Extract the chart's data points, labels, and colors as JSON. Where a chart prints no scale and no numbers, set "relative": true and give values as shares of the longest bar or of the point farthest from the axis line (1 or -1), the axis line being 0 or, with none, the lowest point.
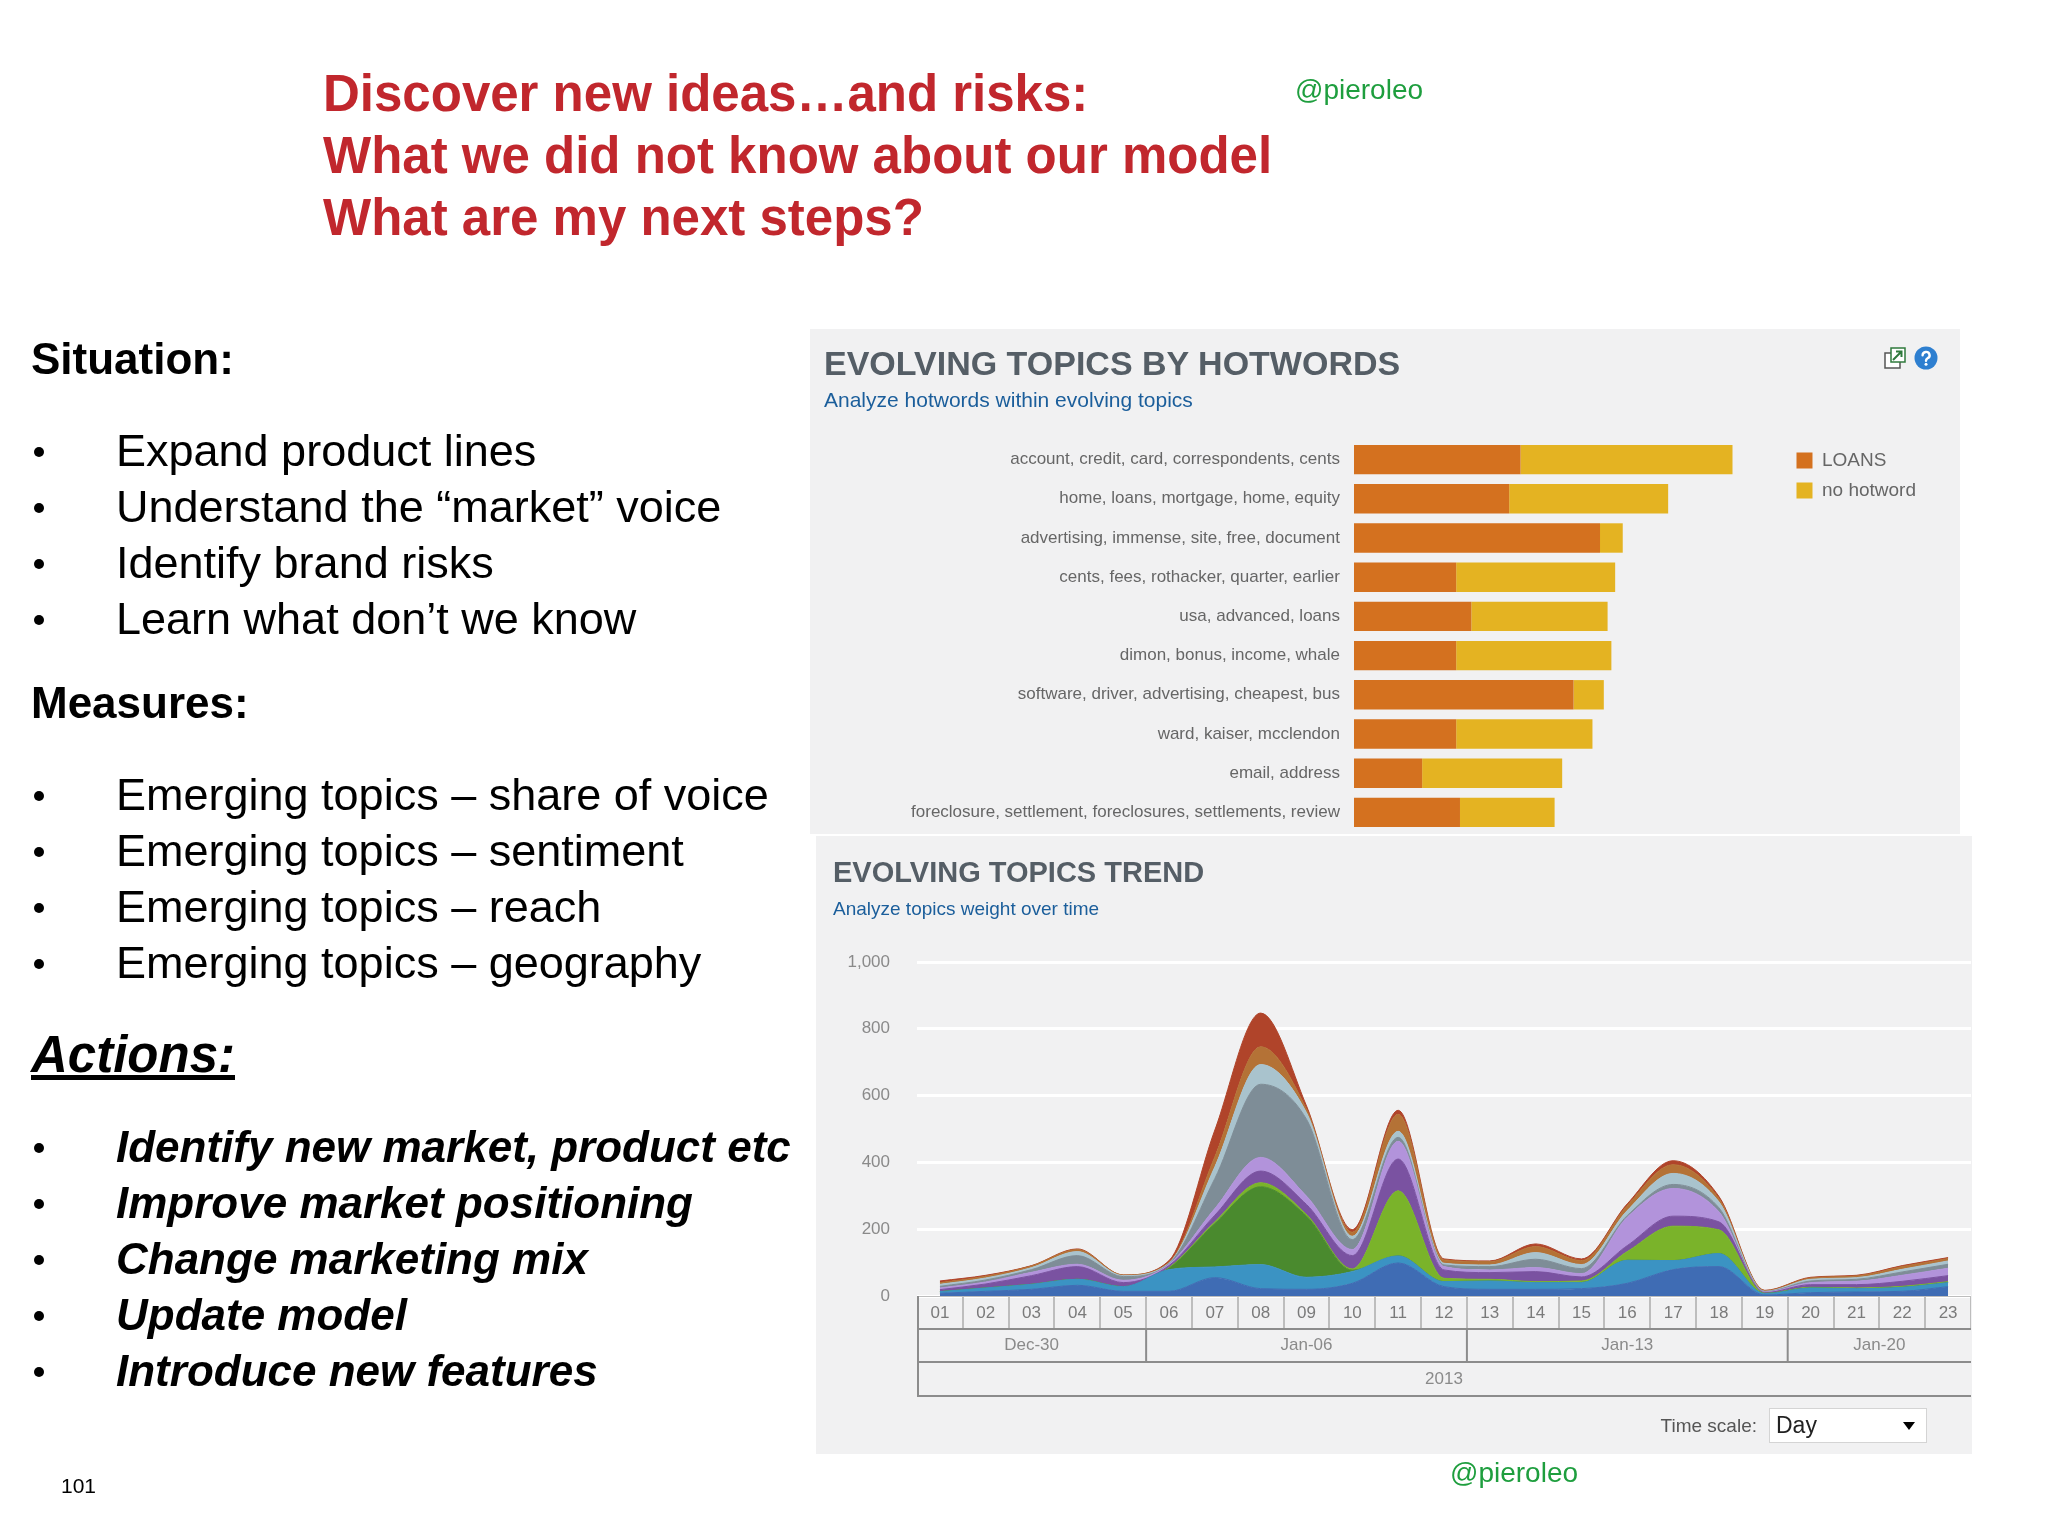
{
  "chart_data": [
    {
      "type": "other",
      "title": "Discover new ideas…and risks:\nWhat we did not know about our model\nWhat are my next steps?",
      "annotations": [
        "@pieroleo",
        "@pieroleo",
        "101"
      ]
    },
    {
      "type": "other",
      "title": "Situation:",
      "annotations": [
        "Expand product lines",
        "Understand the “market” voice",
        "Identify brand risks",
        "Learn what don’t we know"
      ]
    },
    {
      "type": "other",
      "title": "Measures:",
      "annotations": [
        "Emerging topics – share of voice",
        "Emerging topics – sentiment",
        "Emerging topics – reach",
        "Emerging topics – geography"
      ]
    },
    {
      "type": "other",
      "title": "Actions:",
      "annotations": [
        "Identify new market, product etc",
        "Improve market positioning",
        "Change marketing mix",
        "Update model",
        "Introduce new features"
      ]
    },
    {
      "type": "bar",
      "title": "EVOLVING TOPICS BY HOTWORDS",
      "subtitle": "Analyze hotwords within evolving topics",
      "orientation": "horizontal",
      "stacked": true,
      "relative": true,
      "legend": "top right",
      "categories": [
        "account, credit, card, correspondents, cents",
        "home, loans, mortgage, home, equity",
        "advertising, immense, site, free, document",
        "cents, fees, rothacker, quarter, earlier",
        "usa, advanced, loans",
        "dimon, bonus, income, whale",
        "software, driver, advertising, cheapest, bus",
        "ward, kaiser, mcclendon",
        "email, address",
        "foreclosure, settlement, foreclosures, settlements, review"
      ],
      "series": [
        {
          "name": "LOANS",
          "color": "#d4711f",
          "values": [
            0.44,
            0.41,
            0.65,
            0.27,
            0.31,
            0.27,
            0.58,
            0.27,
            0.18,
            0.28
          ]
        },
        {
          "name": "no hotword",
          "color": "#e4b322",
          "values": [
            0.56,
            0.42,
            0.06,
            0.42,
            0.36,
            0.41,
            0.08,
            0.36,
            0.37,
            0.25
          ]
        }
      ]
    },
    {
      "type": "area",
      "title": "EVOLVING TOPICS TREND",
      "subtitle": "Analyze topics weight over time",
      "stacked": true,
      "grid": "y",
      "ylim": [
        0,
        1000
      ],
      "yticks": [
        0,
        200,
        400,
        600,
        800,
        {
          "value": 1000,
          "label": "1,000"
        }
      ],
      "x": [
        "2013-01-01",
        "2013-01-02",
        "2013-01-03",
        "2013-01-04",
        "2013-01-05",
        "2013-01-06",
        "2013-01-07",
        "2013-01-08",
        "2013-01-09",
        "2013-01-10",
        "2013-01-11",
        "2013-01-12",
        "2013-01-13",
        "2013-01-14",
        "2013-01-15",
        "2013-01-16",
        "2013-01-17",
        "2013-01-18",
        "2013-01-19",
        "2013-01-20",
        "2013-01-21",
        "2013-01-22",
        "2013-01-23"
      ],
      "xlim": [
        "2012-12-31T12:00",
        "2013-01-23T12:00"
      ],
      "xticks": [
        {
          "value": "2013-01-01",
          "label": "01"
        },
        {
          "value": "2013-01-02",
          "label": "02"
        },
        {
          "value": "2013-01-03",
          "label": "03"
        },
        {
          "value": "2013-01-04",
          "label": "04"
        },
        {
          "value": "2013-01-05",
          "label": "05"
        },
        {
          "value": "2013-01-06",
          "label": "06"
        },
        {
          "value": "2013-01-07",
          "label": "07"
        },
        {
          "value": "2013-01-08",
          "label": "08"
        },
        {
          "value": "2013-01-09",
          "label": "09"
        },
        {
          "value": "2013-01-10",
          "label": "10"
        },
        {
          "value": "2013-01-11",
          "label": "11"
        },
        {
          "value": "2013-01-12",
          "label": "12"
        },
        {
          "value": "2013-01-13",
          "label": "13"
        },
        {
          "value": "2013-01-14",
          "label": "14"
        },
        {
          "value": "2013-01-15",
          "label": "15"
        },
        {
          "value": "2013-01-16",
          "label": "16"
        },
        {
          "value": "2013-01-17",
          "label": "17"
        },
        {
          "value": "2013-01-18",
          "label": "18"
        },
        {
          "value": "2013-01-19",
          "label": "19"
        },
        {
          "value": "2013-01-20",
          "label": "20"
        },
        {
          "value": "2013-01-21",
          "label": "21"
        },
        {
          "value": "2013-01-22",
          "label": "22"
        },
        {
          "value": "2013-01-23",
          "label": "23"
        }
      ],
      "series": [
        {
          "color": "#3f6cb4",
          "values": [
            8,
            14,
            20,
            32,
            14,
            14,
            55,
            22,
            20,
            38,
            99,
            28,
            20,
            20,
            22,
            38,
            79,
            88,
            3,
            10,
            12,
            14,
            28
          ]
        },
        {
          "color": "#3b93c3",
          "values": [
            5,
            10,
            15,
            18,
            14,
            65,
            32,
            72,
            36,
            35,
            21,
            15,
            25,
            20,
            18,
            69,
            27,
            39,
            4,
            14,
            10,
            12,
            12
          ]
        },
        {
          "color": "#4a8a2e",
          "values": [
            0,
            0,
            0,
            0,
            0,
            4,
            130,
            233,
            183,
            4,
            0,
            0,
            0,
            0,
            0,
            0,
            0,
            0,
            0,
            0,
            0,
            0,
            0
          ]
        },
        {
          "color": "#7ab32a",
          "values": [
            0,
            0,
            0,
            0,
            0,
            2,
            5,
            12,
            5,
            4,
            195,
            10,
            5,
            3,
            5,
            26,
            103,
            71,
            1,
            2,
            2,
            3,
            3
          ]
        },
        {
          "color": "#7a52a1",
          "values": [
            6,
            12,
            26,
            38,
            12,
            6,
            20,
            35,
            30,
            40,
            95,
            25,
            20,
            30,
            12,
            18,
            30,
            24,
            2,
            8,
            10,
            15,
            18
          ]
        },
        {
          "color": "#b293db",
          "values": [
            5,
            6,
            10,
            7,
            7,
            4,
            20,
            41,
            25,
            18,
            53,
            10,
            8,
            12,
            10,
            85,
            83,
            30,
            2,
            6,
            10,
            18,
            22
          ]
        },
        {
          "color": "#7e8d97",
          "values": [
            5,
            6,
            8,
            26,
            11,
            2,
            90,
            219,
            230,
            30,
            12,
            5,
            10,
            25,
            15,
            5,
            12,
            12,
            1,
            5,
            6,
            10,
            12
          ]
        },
        {
          "color": "#a9c3cd",
          "values": [
            6,
            6,
            6,
            12,
            3,
            2,
            35,
            59,
            20,
            10,
            18,
            5,
            5,
            20,
            12,
            15,
            33,
            18,
            1,
            5,
            5,
            8,
            10
          ]
        },
        {
          "color": "#b47236",
          "values": [
            5,
            5,
            5,
            6,
            2,
            2,
            30,
            53,
            10,
            12,
            51,
            10,
            10,
            18,
            12,
            15,
            26,
            10,
            2,
            4,
            5,
            8,
            7
          ]
        },
        {
          "color": "#b0442a",
          "values": [
            5,
            3,
            1,
            2,
            0,
            5,
            80,
            101,
            10,
            8,
            12,
            3,
            2,
            8,
            5,
            5,
            12,
            6,
            1,
            2,
            2,
            3,
            3
          ]
        }
      ],
      "annotations": [
        "Dec-30",
        "Jan-06",
        "Jan-13",
        "Jan-20",
        "2013",
        "Time scale:",
        "Day"
      ]
    }
  ]
}
